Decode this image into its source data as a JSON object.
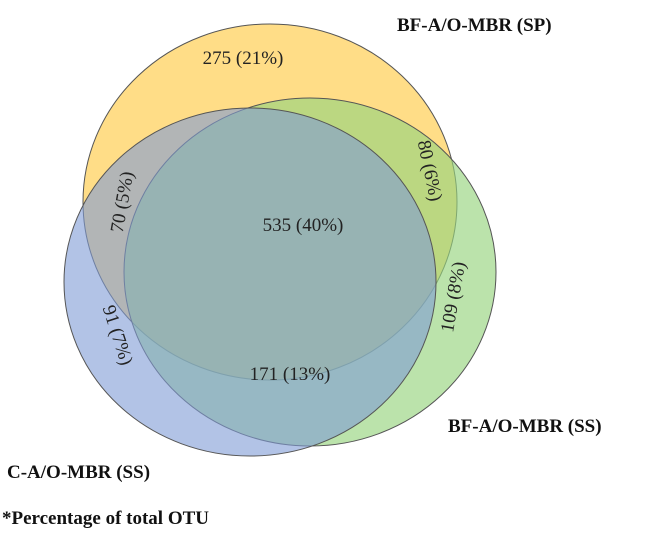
{
  "sets": [
    {
      "key": "sp",
      "name": "BF-A/O-MBR (SP)",
      "color": "#FFD97A"
    },
    {
      "key": "ss",
      "name": "BF-A/O-MBR (SS)",
      "color": "#96D47E"
    },
    {
      "key": "c",
      "name": "C-A/O-MBR (SS)",
      "color": "#8EA6D8"
    }
  ],
  "regions": {
    "sp_only": "275 (21%)",
    "sp_ss": "80 (6%)",
    "ss_only": "109 (8%)",
    "sp_c": "70 (5%)",
    "all": "535 (40%)",
    "c_only": "91 (7%)",
    "ss_c": "171 (13%)"
  },
  "footnote": "*Percentage of total OTU"
}
